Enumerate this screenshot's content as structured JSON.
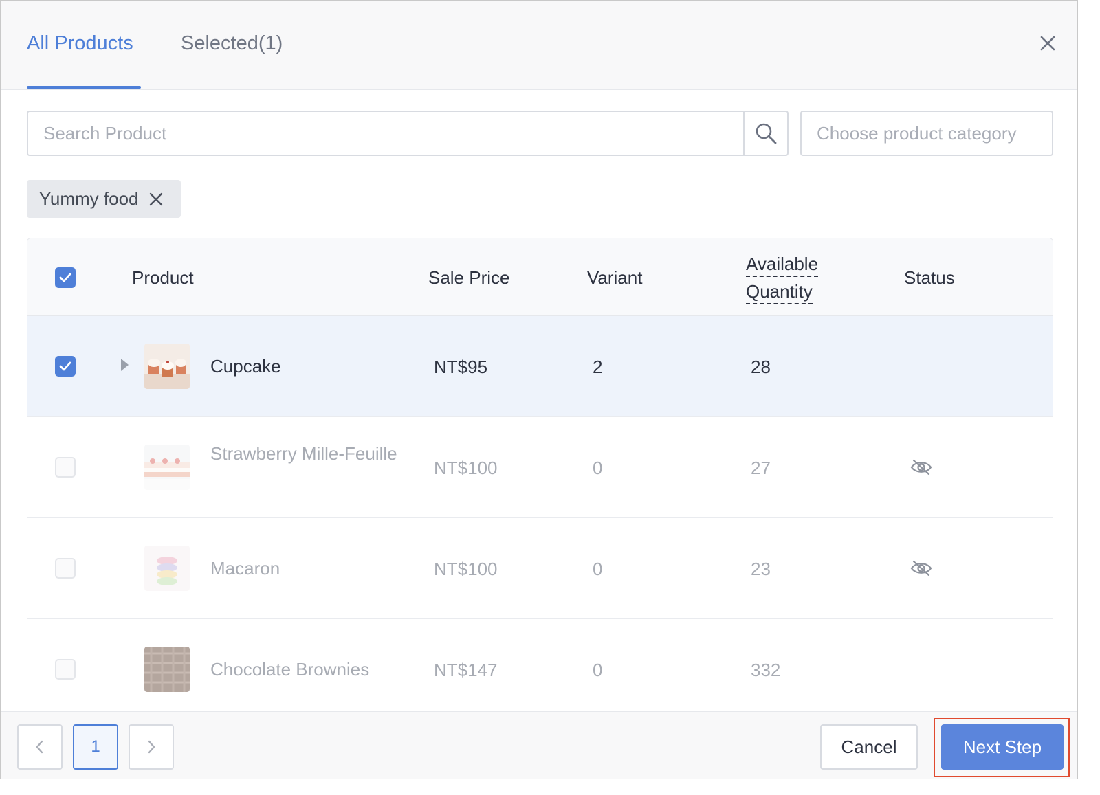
{
  "tabs": {
    "all_products": "All Products",
    "selected": "Selected(1)"
  },
  "search": {
    "placeholder": "Search Product",
    "value": ""
  },
  "category": {
    "placeholder": "Choose product category"
  },
  "filter_tag": {
    "label": "Yummy food"
  },
  "table": {
    "headers": {
      "product": "Product",
      "sale_price": "Sale Price",
      "variant": "Variant",
      "available_line1": "Available",
      "available_line2": "Quantity",
      "status": "Status"
    },
    "rows": [
      {
        "name": "Cupcake",
        "price": "NT$95",
        "variant": "2",
        "available": "28",
        "checked": true,
        "expandable": true,
        "hidden": false,
        "disabled": false
      },
      {
        "name": "Strawberry Mille-Feuille",
        "price": "NT$100",
        "variant": "0",
        "available": "27",
        "checked": false,
        "expandable": false,
        "hidden": true,
        "disabled": true
      },
      {
        "name": "Macaron",
        "price": "NT$100",
        "variant": "0",
        "available": "23",
        "checked": false,
        "expandable": false,
        "hidden": true,
        "disabled": true
      },
      {
        "name": "Chocolate Brownies",
        "price": "NT$147",
        "variant": "0",
        "available": "332",
        "checked": false,
        "expandable": false,
        "hidden": false,
        "disabled": true
      }
    ]
  },
  "pagination": {
    "current_page": "1"
  },
  "footer": {
    "cancel_label": "Cancel",
    "next_label": "Next Step"
  },
  "colors": {
    "accent": "#4e7fd8",
    "primary_button": "#5b85dc",
    "highlight_outline": "#e04a2f",
    "selected_row_bg": "#eef3fb"
  },
  "icons": {
    "close": "close-icon",
    "search": "search-icon",
    "tag_close": "tag-close-icon",
    "hidden_status": "eye-slash-icon",
    "expand": "caret-right-icon",
    "prev": "chevron-left-icon",
    "next": "chevron-right-icon"
  }
}
